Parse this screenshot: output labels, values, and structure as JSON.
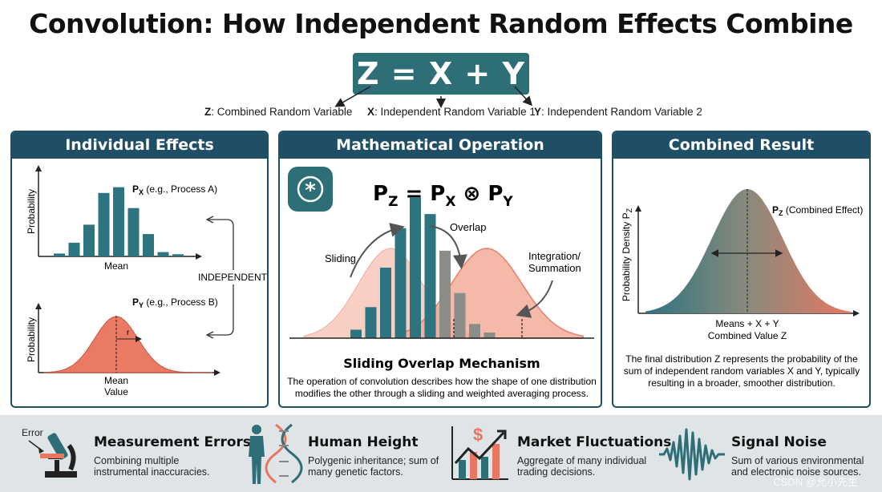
{
  "title": "Convolution: How Independent Random Effects Combine",
  "equation": "Z = X + Y",
  "definitions": [
    {
      "symbol": "Z",
      "text": ": Combined Random Variable"
    },
    {
      "symbol": "X",
      "text": ": Independent Random Variable 1"
    },
    {
      "symbol": "Y",
      "text": ": Independent Random Variable 2"
    }
  ],
  "panels": {
    "individual": {
      "heading": "Individual Effects",
      "top_chart": {
        "ylabel": "Probability",
        "xlabel": "Mean",
        "label_sym": "P",
        "label_sub": "X",
        "label_rest": " (e.g., Process A)",
        "bar_values": [
          0.04,
          0.19,
          0.44,
          0.88,
          0.96,
          0.67,
          0.31,
          0.06,
          0.03
        ]
      },
      "bottom_chart": {
        "ylabel": "Probability",
        "xlabel_line1": "Mean",
        "xlabel_line2": "Value",
        "label_sym": "P",
        "label_sub": "Y",
        "label_rest": " (e.g., Process B)",
        "sigma_label": "r"
      },
      "independent_label": "INDEPENDENT"
    },
    "operation": {
      "heading": "Mathematical Operation",
      "formula": {
        "p": "P",
        "z": "Z",
        "eq": " = ",
        "x": "X",
        "op": " ⊗ ",
        "y": "Y"
      },
      "labels": {
        "sliding": "Sliding",
        "overlap": "Overlap",
        "integration_line1": "Integration/",
        "integration_line2": "Summation"
      },
      "bar_values": [
        0.06,
        0.22,
        0.5,
        0.78,
        1.0,
        0.88,
        0.62,
        0.32,
        0.1,
        0.04
      ],
      "caption_title": "Sliding Overlap Mechanism",
      "caption_line1": "The operation of convolution describes how the shape of one distribution",
      "caption_line2": "modifies the other through a sliding and weighted averaging process."
    },
    "result": {
      "heading": "Combined Result",
      "ylabel_main": "Probability Density P",
      "ylabel_sub": "Z",
      "curve_label_sym": "P",
      "curve_label_sub": "Z",
      "curve_label_rest": " (Combined Effect)",
      "x_mean_label": "Means + X + Y",
      "xlabel": "Combined Value Z",
      "desc_line1": "The final distribution Z represents the probability of the",
      "desc_line2": "sum of independent random variables X and Y, typically",
      "desc_line3": "resulting in a broader, smoother distribution."
    }
  },
  "examples": [
    {
      "icon": "microscope-icon",
      "icon_label": "Error",
      "title": "Measurement Errors",
      "desc": "Combining multiple instrumental inaccuracies."
    },
    {
      "icon": "dna-human-icon",
      "title": "Human Height",
      "desc": "Polygenic inheritance; sum of many genetic factors."
    },
    {
      "icon": "market-chart-icon",
      "title": "Market Fluctuations",
      "desc": "Aggregate of many individual trading decisions."
    },
    {
      "icon": "sound-wave-icon",
      "title": "Signal Noise",
      "desc": "Sum of various environmental and electronic noise sources."
    }
  ],
  "watermark": "CSDN @允小先生",
  "colors": {
    "teal": "#2e6e76",
    "navy": "#1f4f66",
    "salmon": "#e87762",
    "salmon_light": "#f6c7ba",
    "bottom_bg": "#dfe5e6"
  }
}
